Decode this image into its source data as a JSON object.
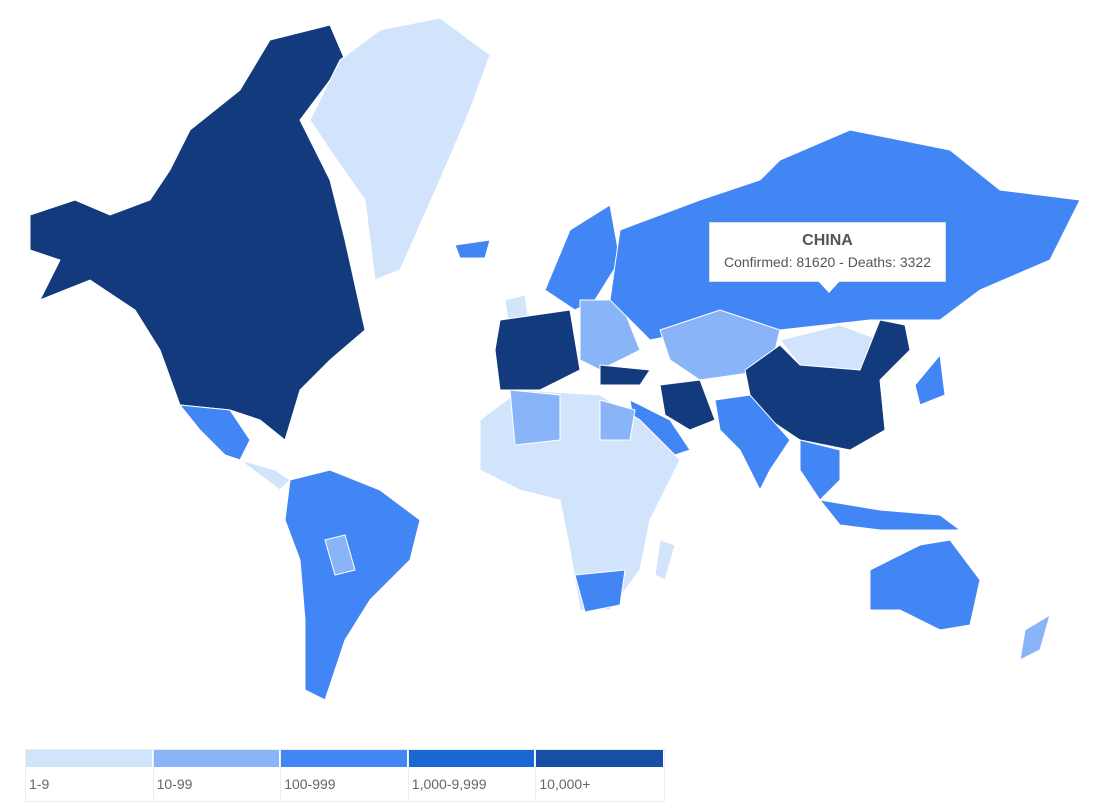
{
  "tooltip": {
    "country": "CHINA",
    "text": "Confirmed: 81620 - Deaths: 3322"
  },
  "legend": [
    {
      "label": "1-9",
      "color": "#d2e3fc"
    },
    {
      "label": "10-99",
      "color": "#8ab4f8"
    },
    {
      "label": "100-999",
      "color": "#4285f4"
    },
    {
      "label": "1,000-9,999",
      "color": "#1967d2"
    },
    {
      "label": "10,000+",
      "color": "#174ea6"
    }
  ]
}
